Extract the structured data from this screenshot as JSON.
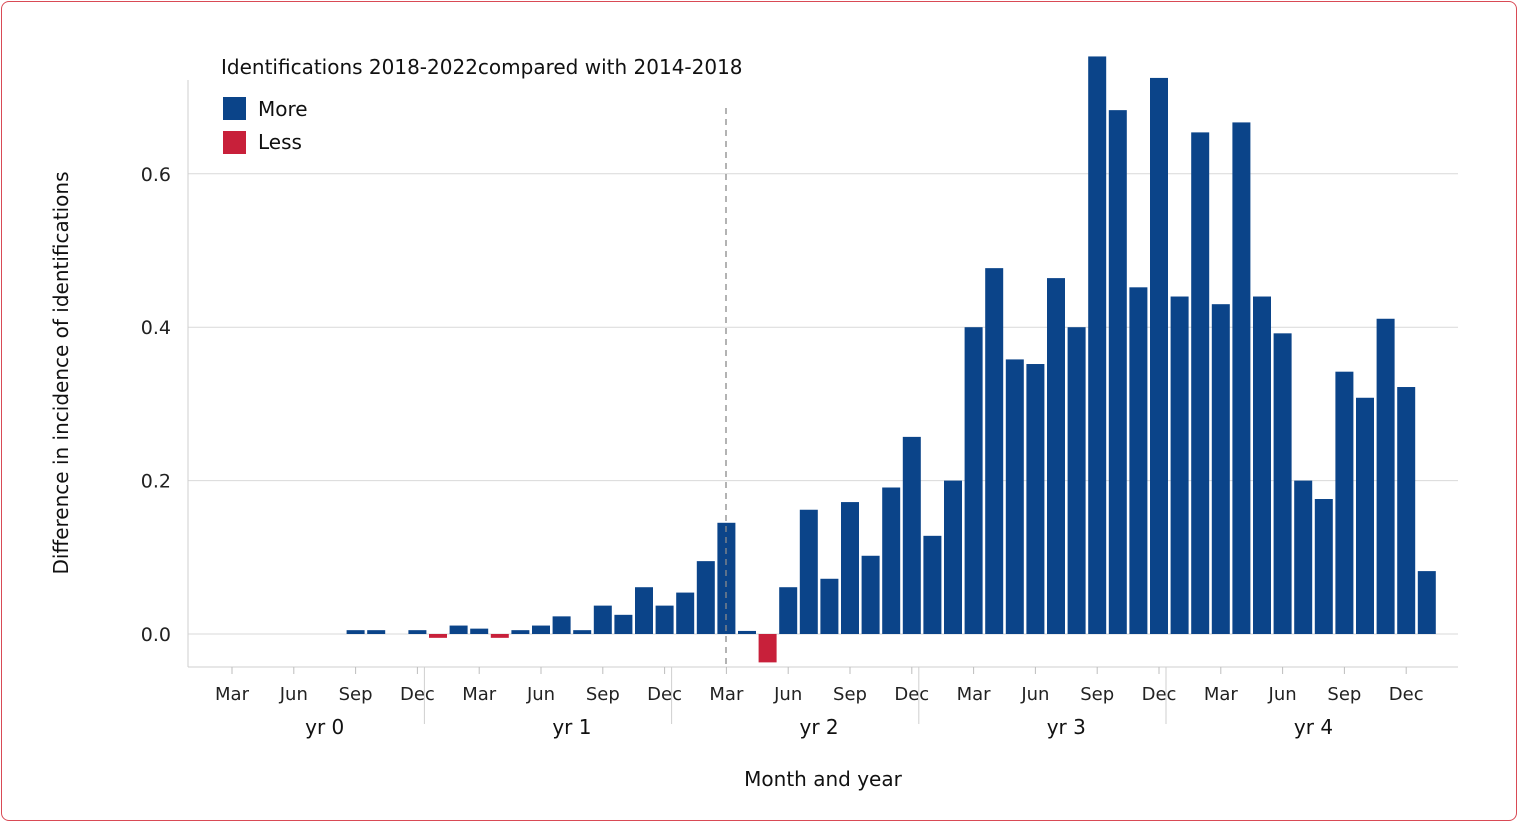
{
  "chart_data": {
    "type": "bar",
    "title": "Identifications 2018-2022compared with 2014-2018",
    "xlabel": "Month and year",
    "ylabel": "Difference in incidence of identifications",
    "ylim": [
      -0.04,
      0.75
    ],
    "yticks": [
      0.0,
      0.2,
      0.4,
      0.6
    ],
    "ytick_labels": [
      "0.0",
      "0.2",
      "0.4",
      "0.6"
    ],
    "month_tick_labels": [
      "Mar",
      "Jun",
      "Sep",
      "Dec"
    ],
    "year_labels": [
      "yr 0",
      "yr 1",
      "yr 2",
      "yr 3",
      "yr 4"
    ],
    "grid": "horizontal",
    "legend_position": "top-left",
    "legend": [
      {
        "label": "More",
        "color": "#0b4489"
      },
      {
        "label": "Less",
        "color": "#c8203a"
      }
    ],
    "reference_line": {
      "style": "dashed",
      "at": "yr 2 Mar"
    },
    "values": [
      0,
      0,
      0,
      0,
      0,
      0,
      0.005,
      0.005,
      0,
      0.005,
      -0.005,
      0.011,
      0.007,
      -0.005,
      0.005,
      0.011,
      0.023,
      0.005,
      0.037,
      0.025,
      0.061,
      0.037,
      0.054,
      0.095,
      0.145,
      0.004,
      -0.037,
      0.061,
      0.162,
      0.072,
      0.172,
      0.102,
      0.191,
      0.257,
      0.128,
      0.2,
      0.4,
      0.477,
      0.358,
      0.352,
      0.464,
      0.4,
      0.753,
      0.683,
      0.452,
      0.725,
      0.44,
      0.654,
      0.43,
      0.667,
      0.44,
      0.392,
      0.2,
      0.176,
      0.342,
      0.308,
      0.411,
      0.322,
      0.082
    ]
  }
}
